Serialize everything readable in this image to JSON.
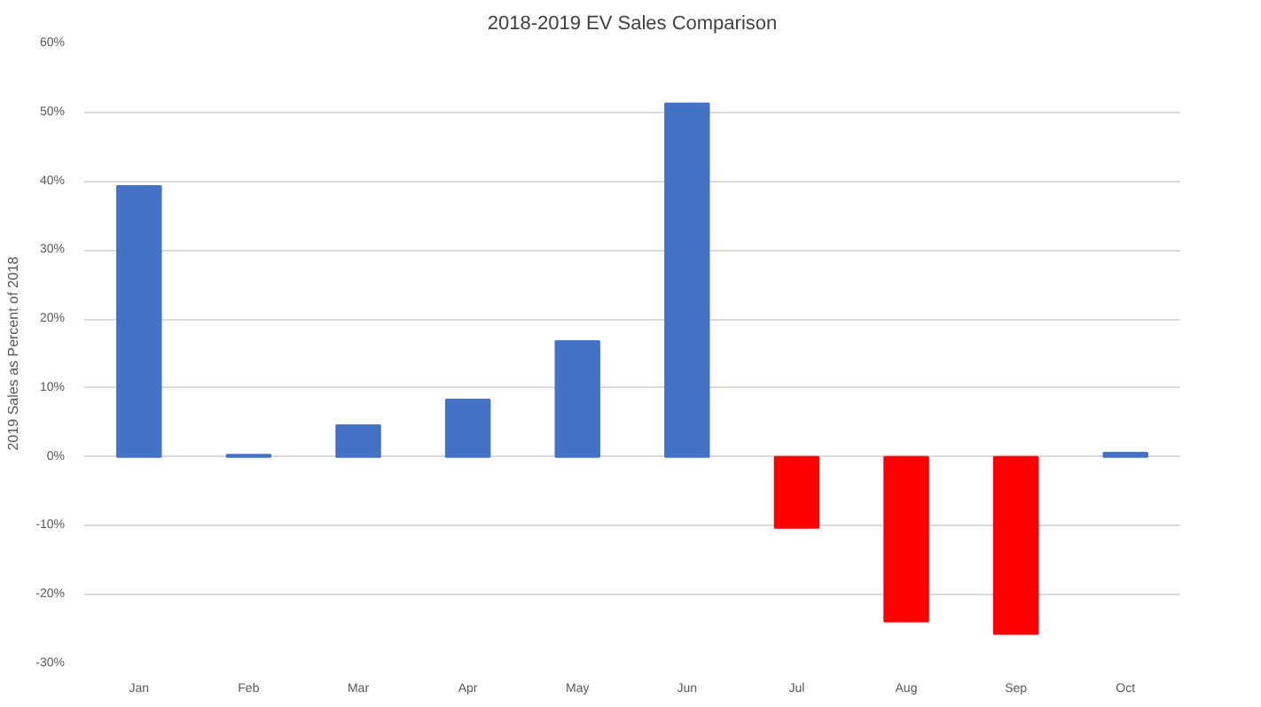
{
  "chart_data": {
    "type": "bar",
    "title": "2018-2019 EV Sales Comparison",
    "ylabel": "2019 Sales as Percent of 2018",
    "categories": [
      "Jan",
      "Feb",
      "Mar",
      "Apr",
      "May",
      "Jun",
      "Jul",
      "Aug",
      "Sep",
      "Oct"
    ],
    "values": [
      39.3,
      0.3,
      4.6,
      8.3,
      16.8,
      51.3,
      -10.3,
      -23.9,
      -25.7,
      0.6
    ],
    "colors": [
      "#4472c4",
      "#4472c4",
      "#4472c4",
      "#4472c4",
      "#4472c4",
      "#4472c4",
      "#ff0000",
      "#ff0000",
      "#ff0000",
      "#4472c4"
    ],
    "ylim": [
      -30,
      60
    ],
    "yticks": [
      {
        "value": -30,
        "label": "-30%"
      },
      {
        "value": -20,
        "label": "-20%"
      },
      {
        "value": -10,
        "label": "-10%"
      },
      {
        "value": 0,
        "label": "0%"
      },
      {
        "value": 10,
        "label": "10%"
      },
      {
        "value": 20,
        "label": "20%"
      },
      {
        "value": 30,
        "label": "30%"
      },
      {
        "value": 40,
        "label": "40%"
      },
      {
        "value": 50,
        "label": "50%"
      },
      {
        "value": 60,
        "label": "60%"
      }
    ],
    "grid": "y"
  }
}
